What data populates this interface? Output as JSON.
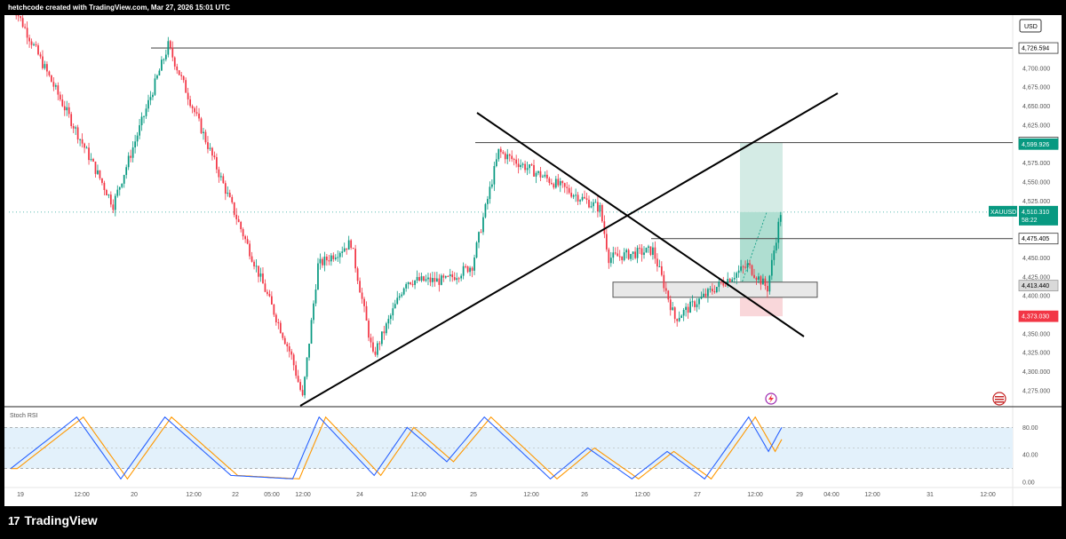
{
  "header": {
    "caption": "hetchcode created with TradingView.com, Mar 27, 2026 15:01 UTC"
  },
  "brand": {
    "name": "TradingView",
    "logo_mark": "17"
  },
  "currency": "USD",
  "symbol": {
    "name": "XAUUSD",
    "last_price": "4,510.310",
    "countdown": "58:22"
  },
  "price_axis": {
    "ticks": [
      "4,700.000",
      "4,675.000",
      "4,650.000",
      "4,625.000",
      "4,575.000",
      "4,550.000",
      "4,525.000",
      "4,450.000",
      "4,425.000",
      "4,400.000",
      "4,350.000",
      "4,325.000",
      "4,300.000",
      "4,275.000"
    ]
  },
  "time_axis": {
    "labels": [
      "19",
      "12:00",
      "20",
      "12:00",
      "22",
      "05:00",
      "12:00",
      "24",
      "12:00",
      "25",
      "12:00",
      "26",
      "12:00",
      "27",
      "12:00",
      "29",
      "04:00",
      "12:00",
      "31",
      "12:00"
    ]
  },
  "levels": [
    {
      "label": "4,726.594",
      "price": 4726.594,
      "kind": "line"
    },
    {
      "label": "4,601.945",
      "price": 4601.945,
      "kind": "line"
    },
    {
      "label": "4,599.926",
      "price": 4599.926,
      "kind": "target"
    },
    {
      "label": "4,475.405",
      "price": 4475.405,
      "kind": "line"
    },
    {
      "label": "4,413.440",
      "price": 4413.44,
      "kind": "entry"
    },
    {
      "label": "4,373.030",
      "price": 4373.03,
      "kind": "stop"
    }
  ],
  "rsi": {
    "title": "Stoch RSI",
    "ticks": [
      "80.00",
      "40.00",
      "0.00"
    ],
    "upper": 80,
    "lower": 20
  },
  "colors": {
    "up": "#089981",
    "down": "#f23645",
    "target_zone": "#cfe9e2",
    "stop_zone": "#f8d3d6",
    "rsi_k": "#2962ff",
    "rsi_d": "#ff9800",
    "rsi_band": "#e3f1fb"
  },
  "chart_data": {
    "type": "candlestick",
    "ylim": [
      4255,
      4770
    ],
    "series": [
      {
        "name": "XAUUSD",
        "trend_segments": [
          {
            "x": [
              0,
              47
            ],
            "y": [
              4793,
              4520
            ]
          },
          {
            "x": [
              47,
              72
            ],
            "y": [
              4520,
              4730
            ]
          },
          {
            "x": [
              72,
              128
            ],
            "y": [
              4730,
              4320
            ]
          },
          {
            "x": [
              128,
              133
            ],
            "y": [
              4320,
              4265
            ]
          },
          {
            "x": [
              133,
              140
            ],
            "y": [
              4265,
              4440
            ]
          },
          {
            "x": [
              140,
              155
            ],
            "y": [
              4440,
              4470
            ]
          },
          {
            "x": [
              155,
              165
            ],
            "y": [
              4470,
              4320
            ]
          },
          {
            "x": [
              165,
              180
            ],
            "y": [
              4320,
              4420
            ]
          },
          {
            "x": [
              180,
              198
            ],
            "y": [
              4420,
              4420
            ]
          },
          {
            "x": [
              198,
              210
            ],
            "y": [
              4420,
              4440
            ]
          },
          {
            "x": [
              210,
              222
            ],
            "y": [
              4440,
              4590
            ]
          },
          {
            "x": [
              222,
              268
            ],
            "y": [
              4590,
              4515
            ]
          },
          {
            "x": [
              268,
              272
            ],
            "y": [
              4515,
              4450
            ]
          },
          {
            "x": [
              272,
              292
            ],
            "y": [
              4450,
              4460
            ]
          },
          {
            "x": [
              292,
              302
            ],
            "y": [
              4460,
              4370
            ]
          },
          {
            "x": [
              302,
              320
            ],
            "y": [
              4370,
              4410
            ]
          },
          {
            "x": [
              320,
              335
            ],
            "y": [
              4410,
              4440
            ]
          },
          {
            "x": [
              335,
              344
            ],
            "y": [
              4440,
              4410
            ]
          },
          {
            "x": [
              344,
              350
            ],
            "y": [
              4410,
              4510
            ]
          }
        ]
      },
      {
        "name": "Stoch RSI",
        "trend_segments": [
          {
            "x": [
              0,
              30
            ],
            "y": [
              20,
              95
            ]
          },
          {
            "x": [
              30,
              50
            ],
            "y": [
              95,
              5
            ]
          },
          {
            "x": [
              50,
              70
            ],
            "y": [
              5,
              95
            ]
          },
          {
            "x": [
              70,
              100
            ],
            "y": [
              95,
              10
            ]
          },
          {
            "x": [
              100,
              128
            ],
            "y": [
              10,
              5
            ]
          },
          {
            "x": [
              128,
              140
            ],
            "y": [
              5,
              95
            ]
          },
          {
            "x": [
              140,
              165
            ],
            "y": [
              95,
              10
            ]
          },
          {
            "x": [
              165,
              180
            ],
            "y": [
              10,
              80
            ]
          },
          {
            "x": [
              180,
              198
            ],
            "y": [
              80,
              30
            ]
          },
          {
            "x": [
              198,
              215
            ],
            "y": [
              30,
              95
            ]
          },
          {
            "x": [
              215,
              245
            ],
            "y": [
              95,
              5
            ]
          },
          {
            "x": [
              245,
              262
            ],
            "y": [
              5,
              50
            ]
          },
          {
            "x": [
              262,
              282
            ],
            "y": [
              50,
              5
            ]
          },
          {
            "x": [
              282,
              298
            ],
            "y": [
              5,
              45
            ]
          },
          {
            "x": [
              298,
              315
            ],
            "y": [
              45,
              5
            ]
          },
          {
            "x": [
              315,
              335
            ],
            "y": [
              5,
              95
            ]
          },
          {
            "x": [
              335,
              344
            ],
            "y": [
              95,
              45
            ]
          },
          {
            "x": [
              344,
              350
            ],
            "y": [
              45,
              80
            ]
          }
        ]
      }
    ]
  }
}
